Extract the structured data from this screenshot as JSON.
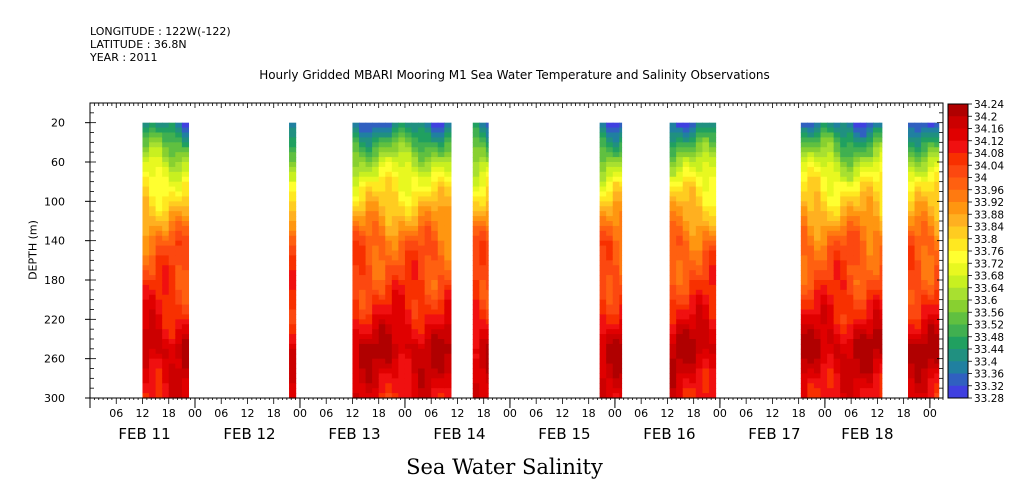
{
  "header": {
    "longitude": "LONGITUDE : 122W(-122)",
    "latitude": "LATITUDE : 36.8N",
    "year": "YEAR : 2011"
  },
  "chart_data": {
    "type": "heatmap",
    "title": "Hourly Gridded MBARI Mooring M1 Sea Water Temperature and Salinity Observations",
    "subtitle": "Sea Water Salinity",
    "ylabel": "DEPTH (m)",
    "xlabel": "",
    "x_range_hours_from_feb11_00": [
      0,
      195
    ],
    "y_range": [
      0,
      300
    ],
    "y_inverted": true,
    "y_ticks": [
      20,
      60,
      100,
      140,
      180,
      220,
      260,
      300
    ],
    "x_hour_ticks": [
      "06",
      "12",
      "18",
      "00",
      "06",
      "12",
      "18",
      "00",
      "06",
      "12",
      "18",
      "00",
      "06",
      "12",
      "18",
      "00",
      "06",
      "12",
      "18",
      "00",
      "06",
      "12",
      "18",
      "00",
      "06",
      "12",
      "18",
      "00",
      "06",
      "12",
      "18",
      "00"
    ],
    "x_day_labels": [
      "FEB 11",
      "FEB 12",
      "FEB 13",
      "FEB 14",
      "FEB 15",
      "FEB 16",
      "FEB 17",
      "FEB 18"
    ],
    "data_intervals_hours": [
      [
        12,
        22.5
      ],
      [
        45.5,
        47
      ],
      [
        60,
        82.5
      ],
      [
        87.5,
        91
      ],
      [
        116.5,
        121.5
      ],
      [
        132.5,
        143
      ],
      [
        162.5,
        181
      ],
      [
        187,
        194
      ]
    ],
    "depth_range_with_data": [
      20,
      300
    ],
    "colorbar": {
      "min": 33.28,
      "max": 34.24,
      "levels": [
        "34.24",
        "34.2",
        "34.16",
        "34.12",
        "34.08",
        "34.04",
        "34",
        "33.96",
        "33.92",
        "33.88",
        "33.84",
        "33.8",
        "33.76",
        "33.72",
        "33.68",
        "33.64",
        "33.6",
        "33.56",
        "33.52",
        "33.48",
        "33.44",
        "33.4",
        "33.36",
        "33.32",
        "33.28"
      ],
      "colors": [
        "#b00000",
        "#cc0000",
        "#e00000",
        "#f01010",
        "#f83000",
        "#fc4810",
        "#ff6010",
        "#ff7a10",
        "#ff9610",
        "#ffb020",
        "#ffcc20",
        "#ffe820",
        "#ffff30",
        "#e8f820",
        "#c8f020",
        "#a8e030",
        "#88d030",
        "#60c040",
        "#40b050",
        "#20a060",
        "#209080",
        "#2080a0",
        "#3060c0",
        "#4040e0",
        "#7030f0",
        "#a020f0"
      ]
    },
    "salinity_profile": {
      "depths": [
        20,
        40,
        60,
        80,
        100,
        120,
        140,
        160,
        180,
        200,
        220,
        240,
        250,
        260,
        280,
        300
      ],
      "values": [
        33.42,
        33.56,
        33.68,
        33.78,
        33.85,
        33.92,
        34.0,
        34.03,
        34.05,
        34.09,
        34.13,
        34.19,
        34.22,
        34.2,
        34.16,
        34.13
      ]
    }
  }
}
